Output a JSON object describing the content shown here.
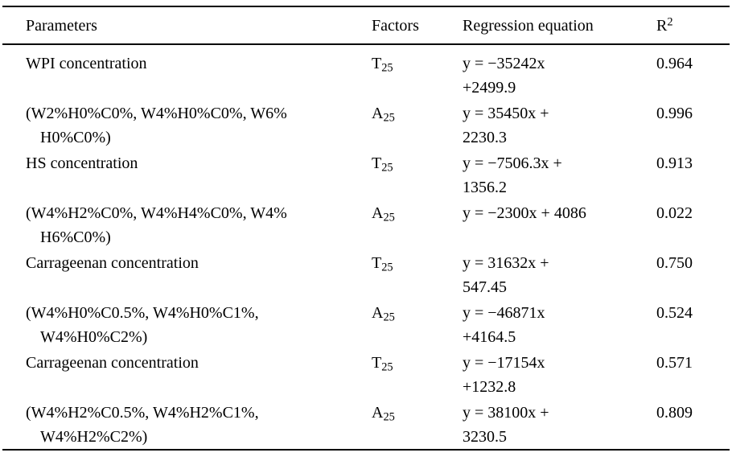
{
  "document": {
    "background_color": "#ffffff",
    "text_color": "#000000",
    "rule_color": "#000000"
  },
  "table": {
    "headers": [
      {
        "label": "Parameters"
      },
      {
        "label": "Factors"
      },
      {
        "label": "Regression equation"
      },
      {
        "label": "R",
        "sup": "2"
      }
    ],
    "rows": [
      {
        "parameter_lines": [
          "WPI concentration"
        ],
        "factor": {
          "base": "T",
          "sub": "25"
        },
        "equation_lines": [
          "y = −35242x",
          "+2499.9"
        ],
        "r2": "0.964"
      },
      {
        "parameter_lines": [
          "(W2%H0%C0%, W4%H0%C0%, W6%",
          "H0%C0%)"
        ],
        "factor": {
          "base": "A",
          "sub": "25"
        },
        "equation_lines": [
          "y = 35450x +",
          "2230.3"
        ],
        "r2": "0.996"
      },
      {
        "parameter_lines": [
          "HS concentration"
        ],
        "factor": {
          "base": "T",
          "sub": "25"
        },
        "equation_lines": [
          "y = −7506.3x +",
          "1356.2"
        ],
        "r2": "0.913"
      },
      {
        "parameter_lines": [
          "(W4%H2%C0%, W4%H4%C0%, W4%",
          "H6%C0%)"
        ],
        "factor": {
          "base": "A",
          "sub": "25"
        },
        "equation_lines": [
          "y = −2300x + 4086"
        ],
        "r2": "0.022"
      },
      {
        "parameter_lines": [
          "Carrageenan concentration"
        ],
        "factor": {
          "base": "T",
          "sub": "25"
        },
        "equation_lines": [
          "y = 31632x +",
          "547.45"
        ],
        "r2": "0.750"
      },
      {
        "parameter_lines": [
          "(W4%H0%C0.5%, W4%H0%C1%,",
          "W4%H0%C2%)"
        ],
        "factor": {
          "base": "A",
          "sub": "25"
        },
        "equation_lines": [
          "y = −46871x",
          "+4164.5"
        ],
        "r2": "0.524"
      },
      {
        "parameter_lines": [
          "Carrageenan concentration"
        ],
        "factor": {
          "base": "T",
          "sub": "25"
        },
        "equation_lines": [
          "y = −17154x",
          "+1232.8"
        ],
        "r2": "0.571"
      },
      {
        "parameter_lines": [
          "(W4%H2%C0.5%, W4%H2%C1%,",
          "W4%H2%C2%)"
        ],
        "factor": {
          "base": "A",
          "sub": "25"
        },
        "equation_lines": [
          "y = 38100x +",
          "3230.5"
        ],
        "r2": "0.809"
      }
    ]
  }
}
